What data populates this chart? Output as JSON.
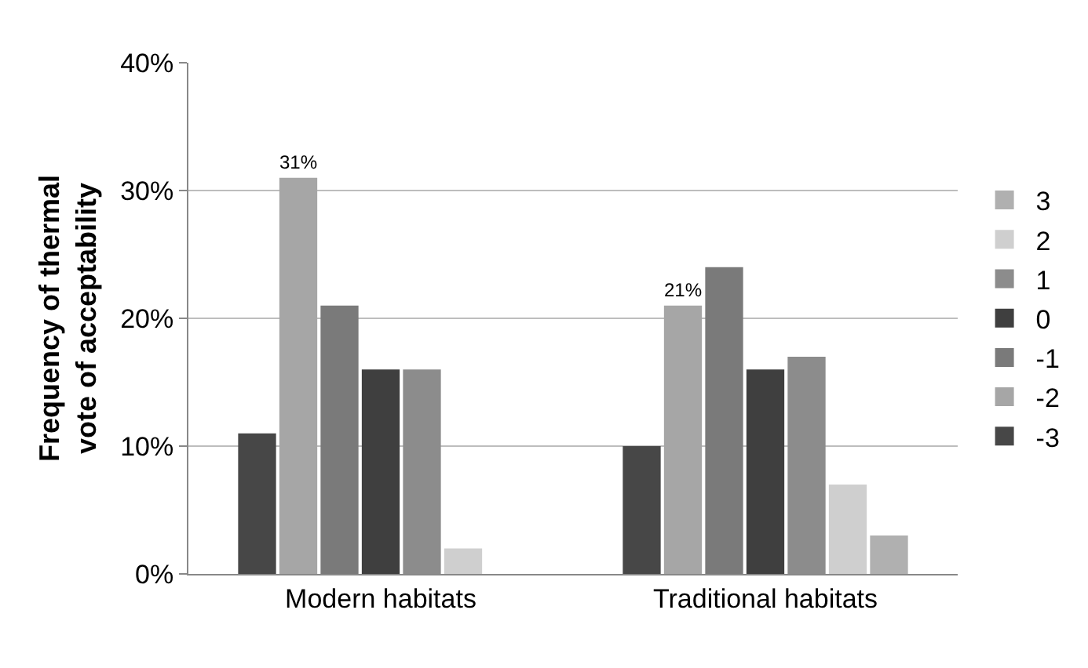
{
  "chart_data": {
    "type": "bar",
    "ylabel": "Frequency of thermal vote of acceptability",
    "categories": [
      "Modern habitats",
      "Traditional habitats"
    ],
    "series": [
      {
        "name": "-3",
        "color": "#474747",
        "values": [
          11,
          10
        ]
      },
      {
        "name": "-2",
        "color": "#a6a6a6",
        "values": [
          31,
          21
        ],
        "value_labels": [
          "31%",
          "21%"
        ]
      },
      {
        "name": "-1",
        "color": "#7a7a7a",
        "values": [
          21,
          24
        ]
      },
      {
        "name": "0",
        "color": "#3f3f3f",
        "values": [
          16,
          16
        ]
      },
      {
        "name": "1",
        "color": "#8c8c8c",
        "values": [
          16,
          17
        ]
      },
      {
        "name": "2",
        "color": "#cfcfcf",
        "values": [
          2,
          7
        ]
      },
      {
        "name": "3",
        "color": "#b0b0b0",
        "values": [
          0,
          3
        ]
      }
    ],
    "ylim": [
      0,
      40
    ],
    "yticks": [
      {
        "value": 0,
        "label": "0%"
      },
      {
        "value": 10,
        "label": "10%"
      },
      {
        "value": 20,
        "label": "20%"
      },
      {
        "value": 30,
        "label": "30%"
      },
      {
        "value": 40,
        "label": "40%"
      }
    ],
    "grid": "y",
    "legend": "right"
  }
}
